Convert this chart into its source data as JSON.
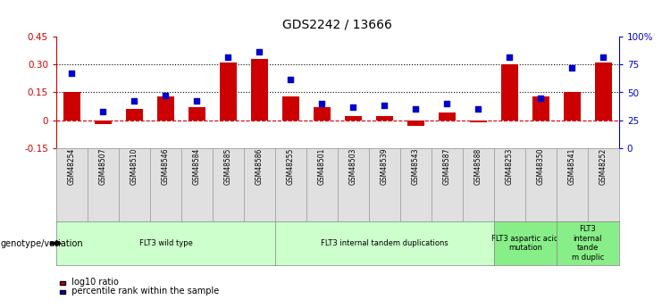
{
  "title": "GDS2242 / 13666",
  "samples": [
    "GSM48254",
    "GSM48507",
    "GSM48510",
    "GSM48546",
    "GSM48584",
    "GSM48585",
    "GSM48586",
    "GSM48255",
    "GSM48501",
    "GSM48503",
    "GSM48539",
    "GSM48543",
    "GSM48587",
    "GSM48588",
    "GSM48253",
    "GSM48350",
    "GSM48541",
    "GSM48252"
  ],
  "log10_ratio": [
    0.15,
    -0.02,
    0.06,
    0.13,
    0.07,
    0.31,
    0.33,
    0.13,
    0.07,
    0.02,
    0.02,
    -0.03,
    0.04,
    -0.01,
    0.3,
    0.13,
    0.15,
    0.31
  ],
  "percentile_rank": [
    67,
    33,
    42,
    47,
    42,
    82,
    87,
    62,
    40,
    37,
    38,
    35,
    40,
    35,
    82,
    45,
    72,
    82
  ],
  "bar_color": "#cc0000",
  "dot_color": "#0000cc",
  "groups": [
    {
      "label": "FLT3 wild type",
      "start": 0,
      "end": 7,
      "color": "#ccffcc"
    },
    {
      "label": "FLT3 internal tandem duplications",
      "start": 7,
      "end": 14,
      "color": "#ccffcc"
    },
    {
      "label": "FLT3 aspartic acid\nmutation",
      "start": 14,
      "end": 16,
      "color": "#88ee88"
    },
    {
      "label": "FLT3\ninternal\ntande\nm duplic",
      "start": 16,
      "end": 18,
      "color": "#88ee88"
    }
  ],
  "ylim_left": [
    -0.15,
    0.45
  ],
  "ylim_right": [
    0,
    100
  ],
  "yticks_left": [
    -0.15,
    0.0,
    0.15,
    0.3,
    0.45
  ],
  "yticks_right": [
    0,
    25,
    50,
    75,
    100
  ],
  "ytick_labels_left": [
    "-0.15",
    "0",
    "0.15",
    "0.30",
    "0.45"
  ],
  "ytick_labels_right": [
    "0",
    "25",
    "50",
    "75",
    "100%"
  ],
  "hlines": [
    0.0,
    0.15,
    0.3
  ],
  "legend_items": [
    {
      "label": "log10 ratio",
      "color": "#cc0000"
    },
    {
      "label": "percentile rank within the sample",
      "color": "#0000cc"
    }
  ],
  "genotype_label": "genotype/variation",
  "fig_width": 7.41,
  "fig_height": 3.45,
  "dpi": 100
}
